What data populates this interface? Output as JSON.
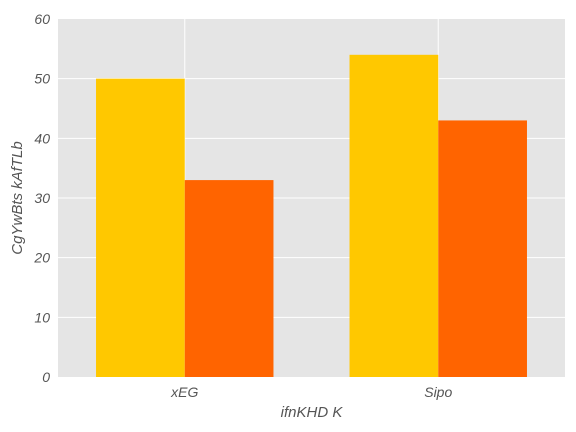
{
  "chart_data": {
    "type": "bar",
    "title": "",
    "xlabel": "ifnKHD K",
    "ylabel": "CgYwBts kAfTLb",
    "categories": [
      "xEG",
      "Sipo"
    ],
    "series": [
      {
        "values": [
          50,
          54
        ],
        "color": "#ffc800"
      },
      {
        "values": [
          33,
          43
        ],
        "color": "#ff6400"
      }
    ],
    "ylim": [
      0,
      60
    ],
    "yticks": [
      0,
      10,
      20,
      30,
      40,
      50,
      60
    ],
    "grid": true,
    "background": "#e5e5e5",
    "gridColor": "#ffffff",
    "legend": "none"
  }
}
